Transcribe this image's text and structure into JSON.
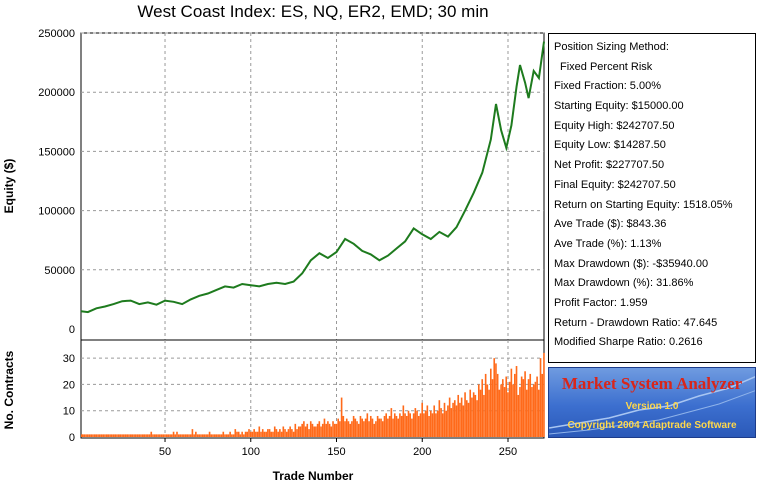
{
  "chart_data": {
    "type": "line",
    "title": "West Coast Index: ES, NQ, ER2, EMD; 30 min",
    "xlabel": "Trade Number",
    "xlim": [
      1,
      271
    ],
    "x_ticks": [
      "50",
      "100",
      "150",
      "200",
      "250"
    ],
    "grid": true,
    "panels": [
      {
        "name": "equity",
        "ylabel": "Equity ($)",
        "ylim": [
          0,
          250000
        ],
        "y_ticks": [
          "0",
          "50000",
          "100000",
          "150000",
          "200000",
          "250000"
        ],
        "series": [
          {
            "type": "line",
            "color": "#1e7b1e",
            "points": [
              [
                1,
                15000
              ],
              [
                5,
                14300
              ],
              [
                10,
                17500
              ],
              [
                15,
                19000
              ],
              [
                20,
                21000
              ],
              [
                25,
                23500
              ],
              [
                30,
                24000
              ],
              [
                35,
                21000
              ],
              [
                40,
                22500
              ],
              [
                45,
                20500
              ],
              [
                50,
                24000
              ],
              [
                55,
                23000
              ],
              [
                60,
                21000
              ],
              [
                65,
                25000
              ],
              [
                70,
                28000
              ],
              [
                75,
                30000
              ],
              [
                80,
                33000
              ],
              [
                85,
                36000
              ],
              [
                90,
                35000
              ],
              [
                95,
                38000
              ],
              [
                100,
                37000
              ],
              [
                105,
                36000
              ],
              [
                110,
                38000
              ],
              [
                115,
                39000
              ],
              [
                120,
                38000
              ],
              [
                125,
                40000
              ],
              [
                130,
                47000
              ],
              [
                135,
                58000
              ],
              [
                140,
                64000
              ],
              [
                145,
                60000
              ],
              [
                150,
                65000
              ],
              [
                155,
                76000
              ],
              [
                160,
                72000
              ],
              [
                165,
                66000
              ],
              [
                170,
                63000
              ],
              [
                175,
                58000
              ],
              [
                180,
                62000
              ],
              [
                185,
                68000
              ],
              [
                190,
                74000
              ],
              [
                195,
                85000
              ],
              [
                200,
                80000
              ],
              [
                205,
                76000
              ],
              [
                210,
                82000
              ],
              [
                215,
                78000
              ],
              [
                220,
                86000
              ],
              [
                225,
                100000
              ],
              [
                230,
                115000
              ],
              [
                235,
                132000
              ],
              [
                240,
                160000
              ],
              [
                243,
                190000
              ],
              [
                246,
                168000
              ],
              [
                249,
                153000
              ],
              [
                252,
                172000
              ],
              [
                255,
                205000
              ],
              [
                257,
                223000
              ],
              [
                260,
                208000
              ],
              [
                262,
                195000
              ],
              [
                265,
                218000
              ],
              [
                268,
                212000
              ],
              [
                271,
                242707
              ]
            ]
          }
        ]
      },
      {
        "name": "contracts",
        "ylabel": "No. Contracts",
        "ylim": [
          0,
          35
        ],
        "y_ticks": [
          "0",
          "10",
          "20",
          "30"
        ],
        "series": [
          {
            "type": "bar",
            "color": "#ff6a1a",
            "values": [
              1,
              1,
              1,
              1,
              1,
              1,
              1,
              1,
              1,
              1,
              1,
              1,
              1,
              1,
              1,
              1,
              1,
              1,
              1,
              1,
              1,
              1,
              1,
              1,
              1,
              1,
              1,
              1,
              1,
              1,
              1,
              1,
              1,
              1,
              1,
              1,
              1,
              1,
              1,
              1,
              1,
              2,
              1,
              1,
              1,
              1,
              1,
              1,
              1,
              1,
              1,
              1,
              1,
              1,
              2,
              1,
              2,
              1,
              1,
              1,
              1,
              1,
              1,
              1,
              1,
              3,
              1,
              2,
              1,
              1,
              1,
              1,
              1,
              1,
              1,
              2,
              1,
              1,
              1,
              1,
              1,
              1,
              1,
              2,
              1,
              1,
              1,
              2,
              1,
              1,
              3,
              2,
              2,
              1,
              2,
              1,
              2,
              2,
              3,
              2,
              2,
              3,
              2,
              2,
              4,
              2,
              3,
              2,
              2,
              3,
              3,
              2,
              2,
              4,
              3,
              2,
              3,
              2,
              4,
              3,
              2,
              3,
              4,
              3,
              2,
              5,
              3,
              4,
              4,
              5,
              6,
              4,
              5,
              3,
              6,
              5,
              4,
              4,
              5,
              6,
              4,
              5,
              7,
              5,
              6,
              5,
              4,
              6,
              5,
              5,
              7,
              6,
              15,
              8,
              6,
              7,
              6,
              5,
              6,
              8,
              7,
              6,
              5,
              8,
              7,
              6,
              7,
              9,
              6,
              8,
              7,
              5,
              6,
              8,
              7,
              7,
              6,
              8,
              9,
              7,
              8,
              11,
              7,
              9,
              8,
              7,
              9,
              8,
              12,
              9,
              8,
              10,
              9,
              7,
              9,
              11,
              10,
              8,
              9,
              13,
              9,
              10,
              12,
              8,
              10,
              9,
              12,
              9,
              10,
              14,
              11,
              9,
              13,
              10,
              12,
              15,
              11,
              13,
              14,
              12,
              16,
              13,
              15,
              12,
              17,
              14,
              13,
              18,
              15,
              17,
              16,
              14,
              20,
              18,
              22,
              16,
              24,
              20,
              18,
              26,
              22,
              30,
              28,
              24,
              18,
              20,
              22,
              19,
              23,
              17,
              21,
              26,
              20,
              24,
              27,
              16,
              19,
              23,
              22,
              25,
              18,
              22,
              24,
              19,
              20,
              21,
              23,
              18,
              30,
              24,
              32
            ]
          }
        ]
      }
    ]
  },
  "stats": [
    "Position Sizing Method:",
    "Fixed Percent Risk",
    "Fixed Fraction: 5.00%",
    "Starting Equity: $15000.00",
    "Equity High: $242707.50",
    "Equity Low: $14287.50",
    "Net Profit: $227707.50",
    "Final Equity: $242707.50",
    "Return on Starting Equity: 1518.05%",
    "Ave Trade ($): $843.36",
    "Ave Trade (%): 1.13%",
    "Max Drawdown ($): -$35940.00",
    "Max Drawdown (%): 31.86%",
    "Profit Factor: 1.959",
    "Return - Drawdown Ratio: 47.645",
    "Modified Sharpe Ratio: 0.2616"
  ],
  "logo": {
    "title": "Market System Analyzer",
    "version": "Version 1.0",
    "copyright": "Copyright 2004 Adaptrade Software"
  }
}
